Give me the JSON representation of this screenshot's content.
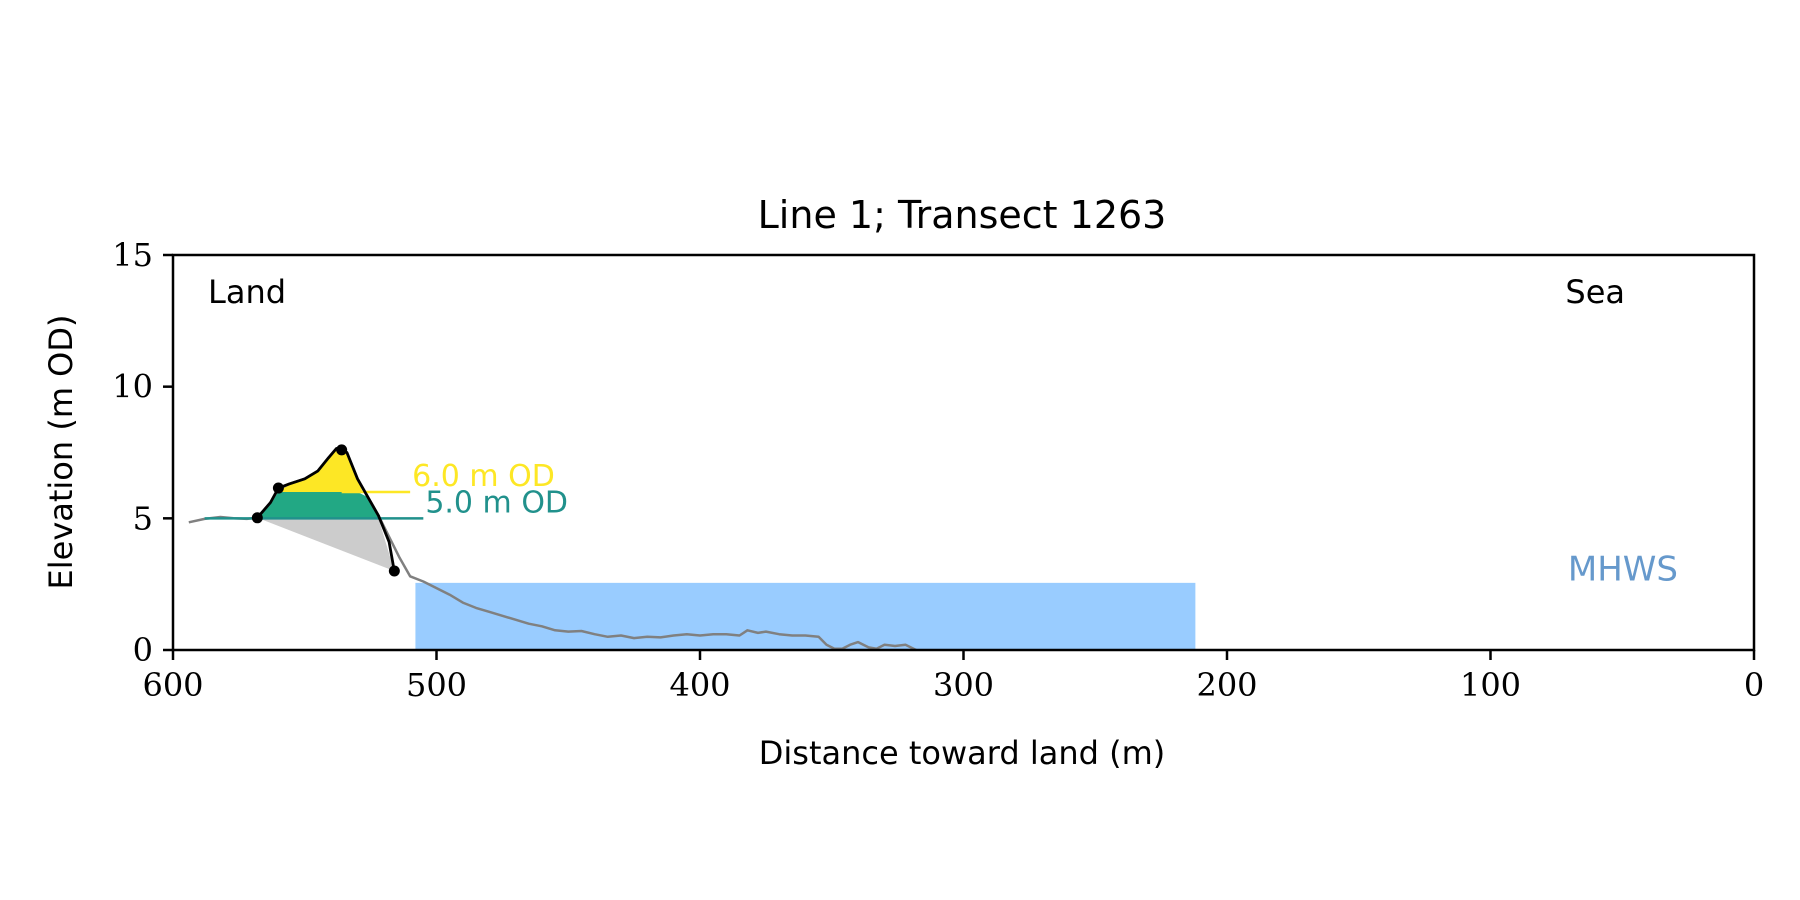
{
  "chart_data": {
    "type": "area",
    "title": "Line 1; Transect 1263",
    "xlabel": "Distance toward land (m)",
    "ylabel": "Elevation (m OD)",
    "xlim": [
      600,
      0
    ],
    "ylim": [
      0,
      15
    ],
    "x_ticks": [
      "600",
      "500",
      "400",
      "300",
      "200",
      "100",
      "0"
    ],
    "y_ticks": [
      "0",
      "5",
      "10",
      "15"
    ],
    "corner_labels": {
      "left": "Land",
      "right": "Sea"
    },
    "grid": false,
    "mhws": {
      "label": "MHWS",
      "elevation": 2.55,
      "x_start": 508,
      "x_end": 212,
      "color": "#99ccff",
      "label_color": "#6699cc"
    },
    "levels": [
      {
        "label": "6.0 m OD",
        "elevation": 6.0,
        "x_end": 510,
        "color": "#fde725"
      },
      {
        "label": "5.0 m OD",
        "elevation": 5.0,
        "x_end": 505,
        "color": "#21918c"
      }
    ],
    "profile": {
      "color": "#808080",
      "x": [
        594,
        588,
        582,
        577,
        572,
        568,
        563,
        560,
        556,
        550,
        545,
        541,
        538,
        536,
        534,
        530,
        526,
        522,
        518,
        514,
        510,
        505,
        500,
        495,
        490,
        485,
        480,
        475,
        470,
        465,
        460,
        455,
        450,
        445,
        440,
        435,
        430,
        425,
        420,
        415,
        410,
        405,
        400,
        395,
        390,
        385,
        382,
        378,
        375,
        370,
        365,
        360,
        355,
        352,
        349,
        346,
        343,
        340,
        336,
        333,
        330,
        326,
        322,
        318
      ],
      "y": [
        4.85,
        4.98,
        5.05,
        5.0,
        4.98,
        5.02,
        5.6,
        6.1,
        6.3,
        6.5,
        6.8,
        7.3,
        7.65,
        7.7,
        7.5,
        6.5,
        5.8,
        5.1,
        4.3,
        3.5,
        2.8,
        2.6,
        2.35,
        2.1,
        1.8,
        1.6,
        1.45,
        1.3,
        1.15,
        1.0,
        0.9,
        0.75,
        0.7,
        0.72,
        0.6,
        0.5,
        0.55,
        0.45,
        0.5,
        0.48,
        0.55,
        0.6,
        0.55,
        0.6,
        0.6,
        0.55,
        0.75,
        0.65,
        0.7,
        0.6,
        0.55,
        0.55,
        0.5,
        0.2,
        0.05,
        0.05,
        0.2,
        0.3,
        0.1,
        0.05,
        0.2,
        0.15,
        0.2,
        0.0
      ]
    },
    "dune_outline": {
      "color": "#000000",
      "x": [
        568,
        563,
        560,
        556,
        550,
        545,
        541,
        538,
        536,
        534,
        530,
        526,
        522,
        518,
        516
      ],
      "y": [
        5.02,
        5.6,
        6.15,
        6.3,
        6.5,
        6.8,
        7.3,
        7.65,
        7.6,
        7.5,
        6.5,
        5.8,
        5.1,
        4.1,
        3.0
      ]
    },
    "markers": {
      "x": [
        568,
        560,
        536,
        516
      ],
      "y": [
        5.02,
        6.15,
        7.6,
        3.0
      ]
    },
    "fills": [
      {
        "name": "below-5m",
        "color": "#cccccc",
        "x": [
          568,
          516,
          522
        ],
        "y": [
          5.02,
          3.0,
          5.0
        ]
      },
      {
        "name": "5-6m",
        "color": "#22a884",
        "x": [
          568,
          563,
          560,
          534,
          530,
          526,
          522
        ],
        "y": [
          5.02,
          5.6,
          6.0,
          6.0,
          6.0,
          5.8,
          5.0
        ]
      },
      {
        "name": "above-6m",
        "color": "#fde725",
        "x": [
          560,
          556,
          550,
          545,
          541,
          538,
          536,
          534,
          530,
          528
        ],
        "y": [
          6.0,
          6.3,
          6.5,
          6.8,
          7.3,
          7.65,
          7.6,
          7.5,
          6.5,
          6.0
        ]
      }
    ]
  }
}
